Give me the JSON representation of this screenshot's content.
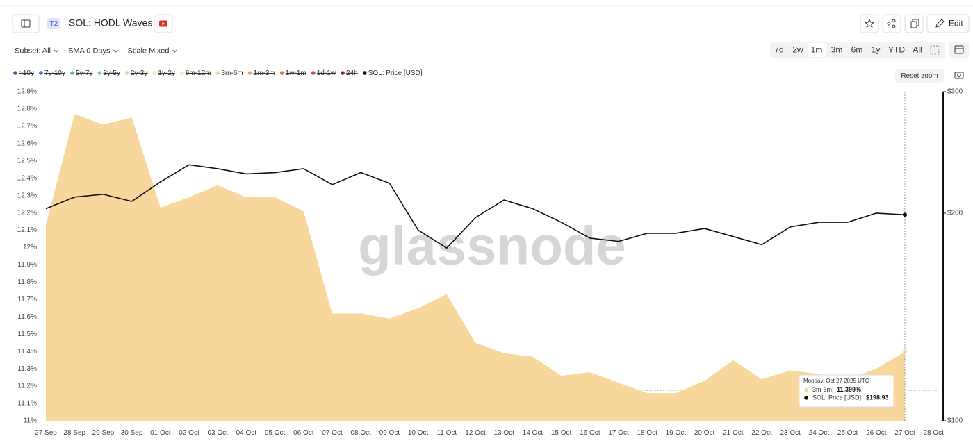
{
  "header": {
    "badge": "T2",
    "title": "SOL: HODL Waves",
    "edit": "Edit"
  },
  "controls": {
    "selectors": [
      "Subset: All",
      "SMA 0 Days",
      "Scale Mixed"
    ],
    "ranges": [
      "7d",
      "2w",
      "1m",
      "3m",
      "6m",
      "1y",
      "YTD",
      "All"
    ],
    "active_range": 2,
    "reset_zoom": "Reset zoom"
  },
  "chart_data": {
    "type": "area",
    "watermark": "glassnode",
    "categories": [
      "27 Sep",
      "28 Sep",
      "29 Sep",
      "30 Sep",
      "01 Oct",
      "02 Oct",
      "03 Oct",
      "04 Oct",
      "05 Oct",
      "06 Oct",
      "07 Oct",
      "08 Oct",
      "09 Oct",
      "10 Oct",
      "11 Oct",
      "12 Oct",
      "13 Oct",
      "14 Oct",
      "15 Oct",
      "16 Oct",
      "17 Oct",
      "18 Oct",
      "19 Oct",
      "20 Oct",
      "21 Oct",
      "22 Oct",
      "23 Oct",
      "24 Oct",
      "25 Oct",
      "26 Oct",
      "27 Oct",
      "28 Oct"
    ],
    "series": [
      {
        "name": ">10y",
        "color": "#5b4e96",
        "hidden": true
      },
      {
        "name": "7y-10y",
        "color": "#4a7fb5",
        "hidden": true
      },
      {
        "name": "5y-7y",
        "color": "#5fb3b3",
        "hidden": true
      },
      {
        "name": "3y-5y",
        "color": "#7fcf8f",
        "hidden": true
      },
      {
        "name": "2y-3y",
        "color": "#bfe6a0",
        "hidden": true
      },
      {
        "name": "1y-2y",
        "color": "#f3efa0",
        "hidden": true
      },
      {
        "name": "6m-12m",
        "color": "#fbe6ad",
        "hidden": true
      },
      {
        "name": "3m-6m",
        "color": "#f7d79c",
        "type": "area",
        "values": [
          12.13,
          12.77,
          12.71,
          12.75,
          12.23,
          12.29,
          12.36,
          12.29,
          12.29,
          12.21,
          11.62,
          11.62,
          11.59,
          11.65,
          11.73,
          11.45,
          11.39,
          11.37,
          11.26,
          11.28,
          11.22,
          11.16,
          11.16,
          11.23,
          11.35,
          11.24,
          11.29,
          11.27,
          11.24,
          11.3,
          11.399,
          null
        ]
      },
      {
        "name": "1m-3m",
        "color": "#f4a162",
        "hidden": true
      },
      {
        "name": "1w-1m",
        "color": "#e07a4a",
        "hidden": true
      },
      {
        "name": "1d-1w",
        "color": "#cf4a4a",
        "hidden": true
      },
      {
        "name": "24h",
        "color": "#8c2346",
        "hidden": true
      },
      {
        "name": "SOL: Price [USD]",
        "color": "#111111",
        "type": "line",
        "axis": "y2",
        "values": [
          203,
          211,
          213,
          208,
          222,
          235,
          232,
          228,
          229,
          232,
          220,
          229,
          221,
          189,
          178,
          197,
          209,
          203,
          194,
          184,
          182,
          187,
          187,
          190,
          185,
          180,
          191,
          194,
          194,
          200,
          198.93,
          null
        ]
      }
    ],
    "ylim": [
      11,
      12.9
    ],
    "yticks": [
      {
        "value": 11,
        "label": "11%"
      },
      {
        "value": 11.1,
        "label": "11.1%"
      },
      {
        "value": 11.2,
        "label": "11.2%"
      },
      {
        "value": 11.3,
        "label": "11.3%"
      },
      {
        "value": 11.4,
        "label": "11.4%"
      },
      {
        "value": 11.5,
        "label": "11.5%"
      },
      {
        "value": 11.6,
        "label": "11.6%"
      },
      {
        "value": 11.7,
        "label": "11.7%"
      },
      {
        "value": 11.8,
        "label": "11.8%"
      },
      {
        "value": 11.9,
        "label": "11.9%"
      },
      {
        "value": 12,
        "label": "12%"
      },
      {
        "value": 12.1,
        "label": "12.1%"
      },
      {
        "value": 12.2,
        "label": "12.2%"
      },
      {
        "value": 12.3,
        "label": "12.3%"
      },
      {
        "value": 12.4,
        "label": "12.4%"
      },
      {
        "value": 12.5,
        "label": "12.5%"
      },
      {
        "value": 12.6,
        "label": "12.6%"
      },
      {
        "value": 12.7,
        "label": "12.7%"
      },
      {
        "value": 12.8,
        "label": "12.8%"
      },
      {
        "value": 12.9,
        "label": "12.9%"
      }
    ],
    "y2lim": [
      100,
      300
    ],
    "y2_scale": "log",
    "y2ticks": [
      {
        "value": 100,
        "label": "$100"
      },
      {
        "value": 200,
        "label": "$200"
      },
      {
        "value": 300,
        "label": "$300"
      }
    ],
    "tooltip": {
      "date": "Monday, Oct 27 2025 UTC",
      "index": 30,
      "rows": [
        {
          "label": "3m-6m: ",
          "value": "11.399%",
          "series": 7
        },
        {
          "label": "SOL: Price [USD]: ",
          "value": "$198.93",
          "series": 12
        }
      ]
    }
  }
}
